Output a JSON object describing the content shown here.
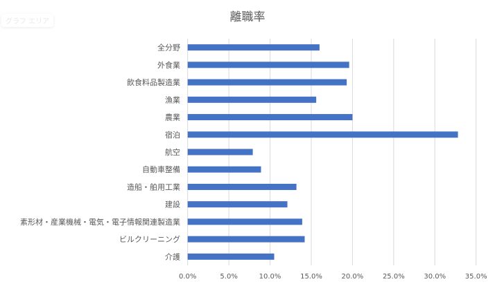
{
  "tooltip": "グラフ エリア",
  "chart_data": {
    "type": "bar",
    "orientation": "horizontal",
    "title": "離職率",
    "xlabel": "",
    "ylabel": "",
    "categories": [
      "全分野",
      "外食業",
      "飲食料品製造業",
      "漁業",
      "農業",
      "宿泊",
      "航空",
      "自動車整備",
      "造船・舶用工業",
      "建設",
      "素形材・産業機械・電気・電子情報関連製造業",
      "ビルクリーニング",
      "介護"
    ],
    "values": [
      16.0,
      19.6,
      19.3,
      15.6,
      20.0,
      32.8,
      7.9,
      8.9,
      13.2,
      12.1,
      13.9,
      14.2,
      10.5
    ],
    "unit": "%",
    "xlim": [
      0,
      35
    ],
    "xticks": [
      "0.0%",
      "5.0%",
      "10.0%",
      "15.0%",
      "20.0%",
      "25.0%",
      "30.0%",
      "35.0%"
    ],
    "grid": true,
    "legend": "none",
    "bar_color": "#4472C4"
  }
}
